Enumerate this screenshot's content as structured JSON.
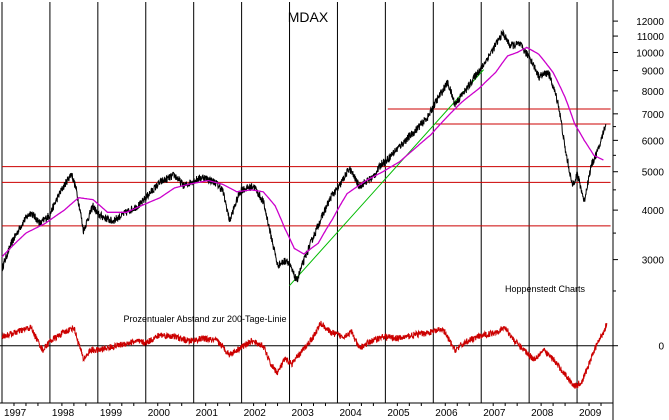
{
  "chart_data": {
    "type": "line",
    "title": "MDAX",
    "source_note": "Hoppenstedt Charts",
    "years": [
      "1997",
      "1998",
      "1999",
      "2000",
      "2001",
      "2002",
      "2003",
      "2004",
      "2005",
      "2006",
      "2007",
      "2008",
      "2009"
    ],
    "upper": {
      "scale": "log",
      "ylim": [
        2400,
        12800
      ],
      "yticks": [
        3000,
        4000,
        5000,
        6000,
        7000,
        8000,
        9000,
        10000,
        11000,
        12000
      ],
      "grid": true,
      "series": [
        {
          "color": "#000000",
          "points": [
            [
              1997.0,
              2850
            ],
            [
              1997.2,
              3300
            ],
            [
              1997.45,
              3750
            ],
            [
              1997.6,
              3950
            ],
            [
              1997.8,
              3700
            ],
            [
              1998.0,
              3900
            ],
            [
              1998.2,
              4400
            ],
            [
              1998.45,
              4950
            ],
            [
              1998.55,
              4500
            ],
            [
              1998.7,
              3550
            ],
            [
              1998.9,
              4100
            ],
            [
              1999.0,
              3900
            ],
            [
              1999.3,
              3750
            ],
            [
              1999.6,
              3950
            ],
            [
              1999.9,
              4150
            ],
            [
              2000.0,
              4300
            ],
            [
              2000.3,
              4700
            ],
            [
              2000.6,
              4900
            ],
            [
              2000.8,
              4600
            ],
            [
              2001.0,
              4750
            ],
            [
              2001.2,
              4850
            ],
            [
              2001.45,
              4700
            ],
            [
              2001.6,
              4500
            ],
            [
              2001.75,
              3750
            ],
            [
              2001.95,
              4400
            ],
            [
              2002.0,
              4500
            ],
            [
              2002.25,
              4600
            ],
            [
              2002.45,
              4200
            ],
            [
              2002.6,
              3500
            ],
            [
              2002.75,
              2900
            ],
            [
              2002.95,
              3000
            ],
            [
              2003.0,
              2900
            ],
            [
              2003.15,
              2650
            ],
            [
              2003.4,
              3200
            ],
            [
              2003.7,
              3900
            ],
            [
              2003.9,
              4400
            ],
            [
              2004.0,
              4500
            ],
            [
              2004.25,
              5100
            ],
            [
              2004.45,
              4600
            ],
            [
              2004.75,
              4850
            ],
            [
              2004.95,
              5300
            ],
            [
              2005.0,
              5300
            ],
            [
              2005.3,
              5800
            ],
            [
              2005.6,
              6300
            ],
            [
              2005.9,
              6900
            ],
            [
              2006.0,
              7300
            ],
            [
              2006.3,
              8400
            ],
            [
              2006.45,
              7400
            ],
            [
              2006.7,
              8100
            ],
            [
              2006.95,
              9000
            ],
            [
              2007.0,
              9100
            ],
            [
              2007.25,
              10200
            ],
            [
              2007.45,
              11200
            ],
            [
              2007.6,
              10400
            ],
            [
              2007.8,
              10500
            ],
            [
              2007.95,
              9900
            ],
            [
              2008.0,
              9800
            ],
            [
              2008.2,
              8700
            ],
            [
              2008.4,
              8900
            ],
            [
              2008.6,
              7500
            ],
            [
              2008.75,
              5700
            ],
            [
              2008.9,
              4600
            ],
            [
              2009.0,
              4950
            ],
            [
              2009.15,
              4200
            ],
            [
              2009.3,
              5200
            ],
            [
              2009.45,
              5700
            ],
            [
              2009.6,
              6600
            ]
          ]
        },
        {
          "color": "#cc00cc",
          "points": [
            [
              1997.0,
              3050
            ],
            [
              1997.5,
              3500
            ],
            [
              1997.9,
              3700
            ],
            [
              1998.3,
              4000
            ],
            [
              1998.6,
              4300
            ],
            [
              1998.9,
              4250
            ],
            [
              1999.2,
              3950
            ],
            [
              1999.6,
              3950
            ],
            [
              1999.9,
              4100
            ],
            [
              2000.3,
              4300
            ],
            [
              2000.6,
              4550
            ],
            [
              2000.9,
              4650
            ],
            [
              2001.3,
              4750
            ],
            [
              2001.6,
              4650
            ],
            [
              2001.9,
              4450
            ],
            [
              2002.2,
              4500
            ],
            [
              2002.45,
              4450
            ],
            [
              2002.7,
              4100
            ],
            [
              2002.9,
              3600
            ],
            [
              2003.1,
              3200
            ],
            [
              2003.3,
              3100
            ],
            [
              2003.6,
              3300
            ],
            [
              2003.9,
              3800
            ],
            [
              2004.2,
              4400
            ],
            [
              2004.6,
              4750
            ],
            [
              2004.95,
              5000
            ],
            [
              2005.3,
              5300
            ],
            [
              2005.6,
              5700
            ],
            [
              2005.95,
              6200
            ],
            [
              2006.3,
              6900
            ],
            [
              2006.6,
              7500
            ],
            [
              2006.95,
              8100
            ],
            [
              2007.3,
              8900
            ],
            [
              2007.55,
              9800
            ],
            [
              2007.75,
              10000
            ],
            [
              2007.95,
              10300
            ],
            [
              2008.2,
              9900
            ],
            [
              2008.5,
              8900
            ],
            [
              2008.75,
              7700
            ],
            [
              2008.95,
              6600
            ],
            [
              2009.15,
              6000
            ],
            [
              2009.35,
              5500
            ],
            [
              2009.55,
              5350
            ]
          ]
        }
      ],
      "hlines": [
        {
          "value": 3650,
          "from": 1997.0,
          "to": 2009.7,
          "color": "#cc0000"
        },
        {
          "value": 4700,
          "from": 1997.0,
          "to": 2009.7,
          "color": "#cc0000"
        },
        {
          "value": 5150,
          "from": 1997.0,
          "to": 2009.7,
          "color": "#cc0000"
        },
        {
          "value": 6600,
          "from": 2006.05,
          "to": 2009.7,
          "color": "#cc0000"
        },
        {
          "value": 7200,
          "from": 2005.05,
          "to": 2009.7,
          "color": "#cc0000"
        }
      ],
      "trendlines": [
        {
          "from": [
            2003.0,
            2580
          ],
          "to": [
            2007.05,
            9050
          ],
          "color": "#00bb00"
        }
      ]
    },
    "lower": {
      "ylabel": "Prozentualer Abstand zur 200-Tage-Linie",
      "ylim": [
        -60,
        45
      ],
      "yticks": [
        0
      ],
      "zero_line": true,
      "series": [
        {
          "color": "#cc0000",
          "points": [
            [
              1997.0,
              10
            ],
            [
              1997.3,
              15
            ],
            [
              1997.6,
              20
            ],
            [
              1997.85,
              -5
            ],
            [
              1998.0,
              5
            ],
            [
              1998.3,
              15
            ],
            [
              1998.5,
              20
            ],
            [
              1998.7,
              -15
            ],
            [
              1998.85,
              -5
            ],
            [
              1999.0,
              -5
            ],
            [
              1999.4,
              0
            ],
            [
              1999.8,
              5
            ],
            [
              2000.0,
              3
            ],
            [
              2000.3,
              12
            ],
            [
              2000.6,
              10
            ],
            [
              2000.9,
              5
            ],
            [
              2001.2,
              8
            ],
            [
              2001.5,
              5
            ],
            [
              2001.75,
              -10
            ],
            [
              2001.95,
              -3
            ],
            [
              2002.2,
              5
            ],
            [
              2002.45,
              0
            ],
            [
              2002.6,
              -20
            ],
            [
              2002.75,
              -30
            ],
            [
              2002.9,
              -15
            ],
            [
              2003.05,
              -20
            ],
            [
              2003.2,
              -10
            ],
            [
              2003.5,
              10
            ],
            [
              2003.65,
              25
            ],
            [
              2003.85,
              15
            ],
            [
              2004.1,
              10
            ],
            [
              2004.3,
              15
            ],
            [
              2004.45,
              -3
            ],
            [
              2004.7,
              5
            ],
            [
              2004.95,
              10
            ],
            [
              2005.3,
              8
            ],
            [
              2005.6,
              12
            ],
            [
              2005.95,
              15
            ],
            [
              2006.2,
              18
            ],
            [
              2006.45,
              -5
            ],
            [
              2006.7,
              5
            ],
            [
              2006.95,
              10
            ],
            [
              2007.3,
              15
            ],
            [
              2007.5,
              20
            ],
            [
              2007.7,
              5
            ],
            [
              2007.9,
              -5
            ],
            [
              2008.1,
              -15
            ],
            [
              2008.3,
              -5
            ],
            [
              2008.5,
              -15
            ],
            [
              2008.65,
              -25
            ],
            [
              2008.8,
              -35
            ],
            [
              2008.95,
              -45
            ],
            [
              2009.1,
              -40
            ],
            [
              2009.25,
              -20
            ],
            [
              2009.4,
              0
            ],
            [
              2009.55,
              15
            ],
            [
              2009.62,
              25
            ]
          ]
        }
      ]
    }
  }
}
